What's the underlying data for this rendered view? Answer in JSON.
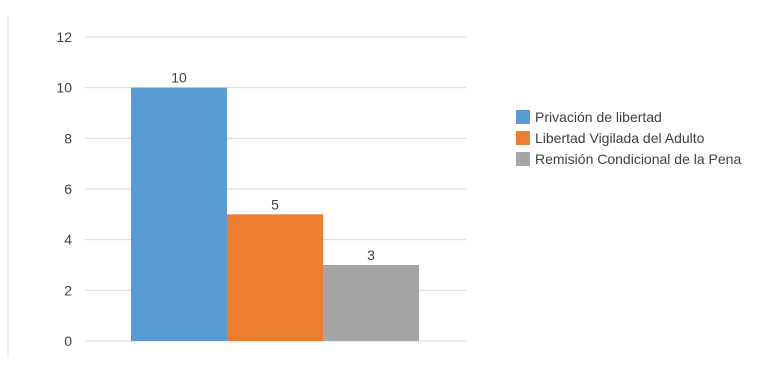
{
  "chart_data": {
    "type": "bar",
    "title": "",
    "xlabel": "",
    "ylabel": "",
    "ylim": [
      0,
      12
    ],
    "yticks": [
      0,
      2,
      4,
      6,
      8,
      10,
      12
    ],
    "grid": true,
    "legend_position": "right",
    "categories": [
      ""
    ],
    "series": [
      {
        "name": "Privación de libertad",
        "values": [
          10
        ],
        "color": "#5b9bd5"
      },
      {
        "name": "Libertad Vigilada del Adulto",
        "values": [
          5
        ],
        "color": "#ed7d31"
      },
      {
        "name": "Remisión Condicional de la Pena",
        "values": [
          3
        ],
        "color": "#a5a5a5"
      }
    ]
  }
}
